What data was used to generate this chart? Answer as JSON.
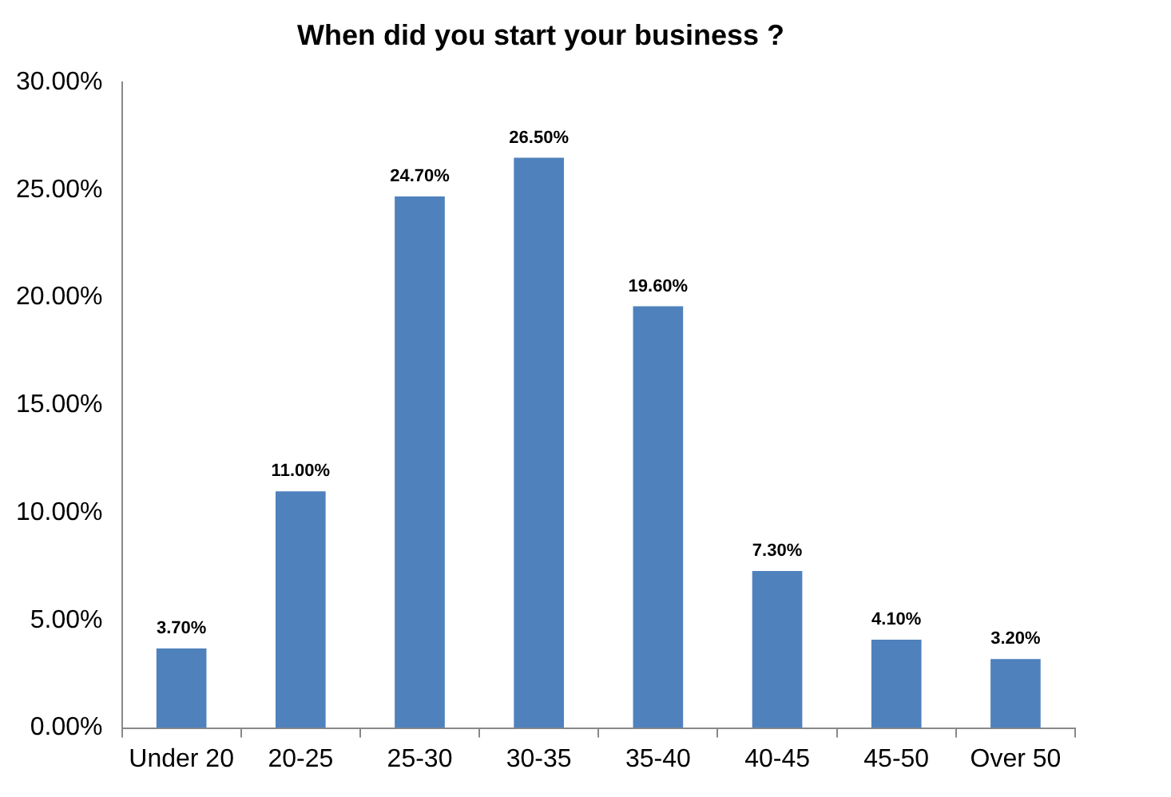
{
  "chart_data": {
    "type": "bar",
    "title": "When did you start your business ?",
    "categories": [
      "Under 20",
      "20-25",
      "25-30",
      "30-35",
      "35-40",
      "40-45",
      "45-50",
      "Over 50"
    ],
    "values": [
      3.7,
      11.0,
      24.7,
      26.5,
      19.6,
      7.3,
      4.1,
      3.2
    ],
    "value_labels": [
      "3.70%",
      "11.00%",
      "24.70%",
      "26.50%",
      "19.60%",
      "7.30%",
      "4.10%",
      "3.20%"
    ],
    "color": "#4f81bd",
    "ylim": [
      0,
      30
    ],
    "yticks": [
      {
        "value": 0,
        "label": "0.00%"
      },
      {
        "value": 5,
        "label": "5.00%"
      },
      {
        "value": 10,
        "label": "10.00%"
      },
      {
        "value": 15,
        "label": "15.00%"
      },
      {
        "value": 20,
        "label": "20.00%"
      },
      {
        "value": 25,
        "label": "25.00%"
      },
      {
        "value": 30,
        "label": "30.00%"
      }
    ],
    "grid": false,
    "legend": false
  }
}
